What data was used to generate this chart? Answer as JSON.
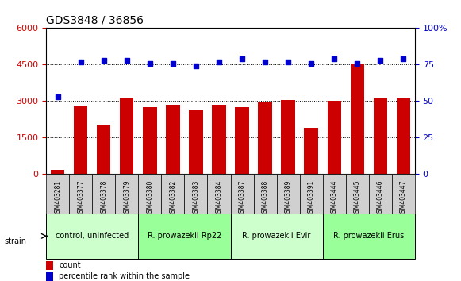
{
  "title": "GDS3848 / 36856",
  "samples": [
    "GSM403281",
    "GSM403377",
    "GSM403378",
    "GSM403379",
    "GSM403380",
    "GSM403382",
    "GSM403383",
    "GSM403384",
    "GSM403387",
    "GSM403388",
    "GSM403389",
    "GSM403391",
    "GSM403444",
    "GSM403445",
    "GSM403446",
    "GSM403447"
  ],
  "counts": [
    180,
    2800,
    2000,
    3100,
    2750,
    2850,
    2650,
    2850,
    2750,
    2950,
    3050,
    1900,
    3000,
    4550,
    3100,
    3100
  ],
  "percentiles": [
    53,
    77,
    78,
    78,
    76,
    76,
    74,
    77,
    79,
    77,
    77,
    76,
    79,
    76,
    78,
    79
  ],
  "groups": [
    {
      "label": "control, uninfected",
      "start": 0,
      "end": 4,
      "color": "#ccffcc"
    },
    {
      "label": "R. prowazekii Rp22",
      "start": 4,
      "end": 8,
      "color": "#99ff99"
    },
    {
      "label": "R. prowazekii Evir",
      "start": 8,
      "end": 12,
      "color": "#ccffcc"
    },
    {
      "label": "R. prowazekii Erus",
      "start": 12,
      "end": 16,
      "color": "#99ff99"
    }
  ],
  "ylim_left": [
    0,
    6000
  ],
  "ylim_right": [
    0,
    100
  ],
  "yticks_left": [
    0,
    1500,
    3000,
    4500,
    6000
  ],
  "yticks_right": [
    0,
    25,
    50,
    75,
    100
  ],
  "bar_color": "#cc0000",
  "dot_color": "#0000cc",
  "bar_width": 0.6,
  "grid_color": "#000000",
  "grid_linestyle": "dotted",
  "background_color": "#ffffff",
  "tick_label_color_left": "#cc0000",
  "tick_label_color_right": "#0000cc"
}
